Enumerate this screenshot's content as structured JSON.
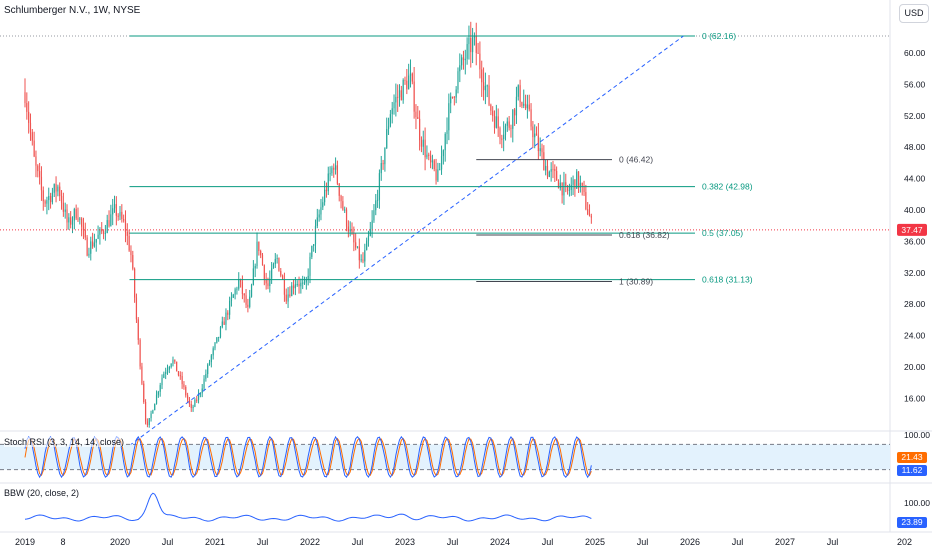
{
  "header": {
    "title": "Schlumberger N.V., 1W, NYSE",
    "currency_button": "USD"
  },
  "colors": {
    "up": "#26a69a",
    "down": "#ef5350",
    "fib": "#089981",
    "trend": "#2962ff",
    "stoch_k": "#2962ff",
    "stoch_d": "#ff6d00",
    "bbw": "#2962ff",
    "last_price": "#f23645"
  },
  "chart_data": {
    "type": "candlestick",
    "symbol": "Schlumberger N.V.",
    "interval": "1W",
    "exchange": "NYSE",
    "y_ticks": [
      "60.00",
      "56.00",
      "52.00",
      "48.00",
      "44.00",
      "40.00",
      "36.00",
      "32.00",
      "28.00",
      "24.00",
      "20.00",
      "16.00"
    ],
    "x_ticks": [
      "2019",
      "8",
      "2020",
      "Jul",
      "2021",
      "Jul",
      "2022",
      "Jul",
      "2023",
      "Jul",
      "2024",
      "Jul",
      "2025",
      "Jul",
      "2026",
      "Jul",
      "2027",
      "Jul",
      "202"
    ],
    "price_path": [
      [
        2019.0,
        55.0
      ],
      [
        2019.1,
        46.0
      ],
      [
        2019.2,
        41.0
      ],
      [
        2019.35,
        43.0
      ],
      [
        2019.45,
        38.0
      ],
      [
        2019.55,
        40.0
      ],
      [
        2019.65,
        35.0
      ],
      [
        2019.8,
        37.0
      ],
      [
        2019.95,
        40.0
      ],
      [
        2020.05,
        38.0
      ],
      [
        2020.12,
        34.0
      ],
      [
        2020.2,
        22.0
      ],
      [
        2020.28,
        12.0
      ],
      [
        2020.35,
        15.0
      ],
      [
        2020.45,
        19.0
      ],
      [
        2020.55,
        21.0
      ],
      [
        2020.65,
        18.0
      ],
      [
        2020.75,
        14.5
      ],
      [
        2020.85,
        17.0
      ],
      [
        2020.95,
        21.0
      ],
      [
        2021.1,
        26.0
      ],
      [
        2021.25,
        31.0
      ],
      [
        2021.35,
        27.0
      ],
      [
        2021.45,
        36.0
      ],
      [
        2021.55,
        30.0
      ],
      [
        2021.65,
        34.0
      ],
      [
        2021.75,
        29.0
      ],
      [
        2021.85,
        31.0
      ],
      [
        2021.95,
        30.0
      ],
      [
        2022.05,
        37.0
      ],
      [
        2022.15,
        42.0
      ],
      [
        2022.25,
        46.0
      ],
      [
        2022.35,
        40.0
      ],
      [
        2022.45,
        36.0
      ],
      [
        2022.55,
        33.0
      ],
      [
        2022.65,
        38.0
      ],
      [
        2022.75,
        45.0
      ],
      [
        2022.85,
        53.0
      ],
      [
        2022.95,
        55.0
      ],
      [
        2023.05,
        57.0
      ],
      [
        2023.15,
        50.0
      ],
      [
        2023.25,
        46.0
      ],
      [
        2023.35,
        44.0
      ],
      [
        2023.45,
        52.0
      ],
      [
        2023.55,
        57.0
      ],
      [
        2023.65,
        60.0
      ],
      [
        2023.72,
        61.5
      ],
      [
        2023.8,
        58.0
      ],
      [
        2023.9,
        53.0
      ],
      [
        2024.0,
        50.0
      ],
      [
        2024.1,
        51.0
      ],
      [
        2024.2,
        55.0
      ],
      [
        2024.3,
        52.0
      ],
      [
        2024.4,
        48.0
      ],
      [
        2024.5,
        45.0
      ],
      [
        2024.6,
        44.0
      ],
      [
        2024.7,
        42.0
      ],
      [
        2024.8,
        44.0
      ],
      [
        2024.85,
        43.0
      ],
      [
        2024.92,
        40.0
      ],
      [
        2024.98,
        37.5
      ]
    ],
    "last_price": "37.47",
    "fibonacci": [
      {
        "label": "0 (62.16)",
        "price": 62.16
      },
      {
        "label": "0.382 (42.98)",
        "price": 42.98
      },
      {
        "label": "0.5 (37.05)",
        "price": 37.05
      },
      {
        "label": "0.618 (31.13)",
        "price": 31.13
      }
    ],
    "fib_short": [
      {
        "label": "0 (46.42)",
        "price": 46.42
      },
      {
        "label": "0.618 (36.82)",
        "price": 36.82
      },
      {
        "label": "1 (30.89)",
        "price": 30.89
      }
    ],
    "trend_line": {
      "from": [
        2020.1,
        10.0
      ],
      "to": [
        2025.93,
        62.16
      ]
    },
    "indicators": {
      "stoch": {
        "label": "Stoch RSI (3, 3, 14, 14, close)",
        "ticks": [
          "100.00"
        ],
        "k_value": "21.43",
        "d_value": "11.62",
        "band": [
          20,
          80
        ]
      },
      "bbw": {
        "label": "BBW (20, close, 2)",
        "ticks": [
          "100.00"
        ],
        "value": "23.89"
      }
    }
  }
}
